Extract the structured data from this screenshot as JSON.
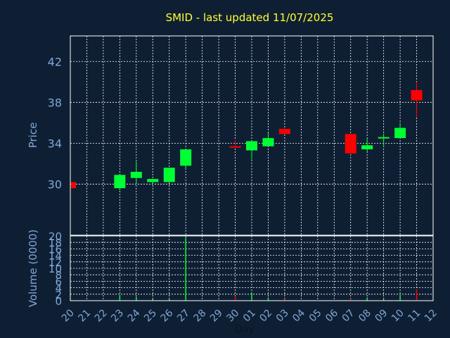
{
  "chart_data": {
    "type": "candlestick",
    "title": "SMID - last updated 11/07/2025",
    "xlabel": "Day",
    "price_panel": {
      "ylabel": "Price",
      "ylim": [
        25.0,
        44.5
      ],
      "yticks": [
        30,
        34,
        38,
        42
      ]
    },
    "volume_panel": {
      "ylabel": "Volume (0000)",
      "ylim": [
        0,
        20
      ],
      "yticks": [
        0,
        2,
        4,
        6,
        8,
        10,
        12,
        14,
        16,
        18,
        20
      ]
    },
    "x_ticks": [
      "20",
      "21",
      "22",
      "23",
      "24",
      "25",
      "26",
      "27",
      "28",
      "29",
      "30",
      "01",
      "02",
      "03",
      "04",
      "05",
      "06",
      "07",
      "08",
      "09",
      "10",
      "11",
      "12"
    ],
    "candles": [
      {
        "day": "20",
        "open": 30.2,
        "close": 29.6,
        "high": 30.2,
        "low": 29.6,
        "volume": 0.4
      },
      {
        "day": "23",
        "open": 29.6,
        "close": 30.9,
        "high": 30.9,
        "low": 29.4,
        "volume": 1.5
      },
      {
        "day": "24",
        "open": 30.6,
        "close": 31.2,
        "high": 32.2,
        "low": 30.0,
        "volume": 1.2
      },
      {
        "day": "25",
        "open": 30.2,
        "close": 30.5,
        "high": 30.5,
        "low": 30.0,
        "volume": 0.6
      },
      {
        "day": "26",
        "open": 30.2,
        "close": 31.6,
        "high": 31.6,
        "low": 30.2,
        "volume": 0.5
      },
      {
        "day": "27",
        "open": 31.8,
        "close": 33.4,
        "high": 33.4,
        "low": 31.4,
        "volume": 19.5
      },
      {
        "day": "30",
        "open": 33.7,
        "close": 33.6,
        "high": 34.3,
        "low": 33.6,
        "volume": 1.5
      },
      {
        "day": "01",
        "open": 33.3,
        "close": 34.2,
        "high": 34.2,
        "low": 32.4,
        "volume": 2.5
      },
      {
        "day": "02",
        "open": 33.7,
        "close": 34.5,
        "high": 35.0,
        "low": 33.7,
        "volume": 1.0
      },
      {
        "day": "03",
        "open": 35.4,
        "close": 34.9,
        "high": 35.5,
        "low": 34.9,
        "volume": 0.5
      },
      {
        "day": "07",
        "open": 34.9,
        "close": 33.0,
        "high": 34.9,
        "low": 33.0,
        "volume": 0.6
      },
      {
        "day": "08",
        "open": 33.4,
        "close": 33.8,
        "high": 34.5,
        "low": 33.2,
        "volume": 1.0
      },
      {
        "day": "09",
        "open": 34.5,
        "close": 34.6,
        "high": 34.9,
        "low": 33.6,
        "volume": 0.5
      },
      {
        "day": "10",
        "open": 34.5,
        "close": 35.5,
        "high": 36.0,
        "low": 34.5,
        "volume": 1.5
      },
      {
        "day": "11",
        "open": 39.2,
        "close": 38.2,
        "high": 40.0,
        "low": 36.5,
        "volume": 3.5
      }
    ],
    "colors": {
      "up": "#00ff33",
      "down": "#ff0000",
      "background": "#0f1f33",
      "grid": "#ffffff",
      "title": "#ffff33",
      "axis_text": "#7fa7d9"
    },
    "grid": true
  }
}
